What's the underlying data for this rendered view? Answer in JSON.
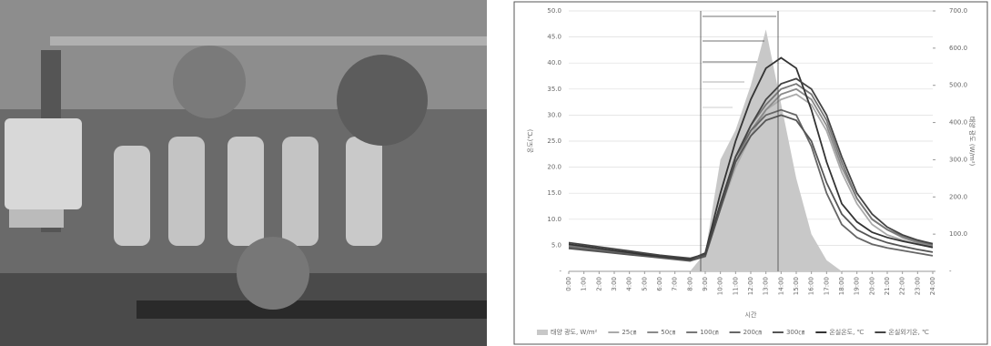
{
  "chart_data": {
    "type": "line",
    "y_label": "온도(℃)",
    "y2_label": "태양 광도 (W/m²)",
    "x_label": "시간",
    "x": [
      0,
      1,
      2,
      3,
      4,
      5,
      6,
      7,
      8,
      9,
      10,
      11,
      12,
      13,
      14,
      15,
      16,
      17,
      18,
      19,
      20,
      21,
      22,
      23,
      24
    ],
    "xlim": [
      0,
      24
    ],
    "xticks": [
      {
        "value": 0,
        "label": "0:00"
      },
      {
        "value": 1,
        "label": "1:00"
      },
      {
        "value": 2,
        "label": "2:00"
      },
      {
        "value": 3,
        "label": "3:00"
      },
      {
        "value": 4,
        "label": "4:00"
      },
      {
        "value": 5,
        "label": "5:00"
      },
      {
        "value": 6,
        "label": "6:00"
      },
      {
        "value": 7,
        "label": "7:00"
      },
      {
        "value": 8,
        "label": "8:00"
      },
      {
        "value": 9,
        "label": "9:00"
      },
      {
        "value": 10,
        "label": "10:00"
      },
      {
        "value": 11,
        "label": "11:00"
      },
      {
        "value": 12,
        "label": "12:00"
      },
      {
        "value": 13,
        "label": "13:00"
      },
      {
        "value": 14,
        "label": "14:00"
      },
      {
        "value": 15,
        "label": "15:00"
      },
      {
        "value": 16,
        "label": "16:00"
      },
      {
        "value": 17,
        "label": "17:00"
      },
      {
        "value": 18,
        "label": "18:00"
      },
      {
        "value": 19,
        "label": "19:00"
      },
      {
        "value": 20,
        "label": "20:00"
      },
      {
        "value": 21,
        "label": "21:00"
      },
      {
        "value": 22,
        "label": "22:00"
      },
      {
        "value": 23,
        "label": "23:00"
      },
      {
        "value": 24,
        "label": "24:00"
      }
    ],
    "ylim": [
      0,
      50
    ],
    "yticks": [
      {
        "value": 0,
        "label": "-"
      },
      {
        "value": 5,
        "label": "5.0"
      },
      {
        "value": 10,
        "label": "10.0"
      },
      {
        "value": 15,
        "label": "15.0"
      },
      {
        "value": 20,
        "label": "20.0"
      },
      {
        "value": 25,
        "label": "25.0"
      },
      {
        "value": 30,
        "label": "30.0"
      },
      {
        "value": 35,
        "label": "35.0"
      },
      {
        "value": 40,
        "label": "40.0"
      },
      {
        "value": 45,
        "label": "45.0"
      },
      {
        "value": 50,
        "label": "50.0"
      }
    ],
    "y2lim": [
      0,
      700
    ],
    "y2ticks": [
      {
        "value": 0,
        "label": "-"
      },
      {
        "value": 100,
        "label": "100.0"
      },
      {
        "value": 200,
        "label": "200.0"
      },
      {
        "value": 300,
        "label": "300.0"
      },
      {
        "value": 400,
        "label": "400.0"
      },
      {
        "value": 500,
        "label": "500.0"
      },
      {
        "value": 600,
        "label": "600.0"
      },
      {
        "value": 700,
        "label": "700.0"
      }
    ],
    "grid": true,
    "series": [
      {
        "name": "태양 광도, W/m²",
        "color": "#c8c8c8",
        "axis": "y2",
        "style": "area",
        "values": [
          0,
          0,
          0,
          0,
          0,
          0,
          0,
          0,
          0,
          50,
          300,
          380,
          500,
          650,
          450,
          250,
          100,
          30,
          0,
          0,
          0,
          0,
          0,
          0,
          0
        ]
      },
      {
        "name": "25㎝",
        "color": "#aaaaaa",
        "values": [
          4.5,
          4.2,
          3.9,
          3.6,
          3.3,
          3.0,
          2.7,
          2.4,
          2.1,
          2.8,
          12,
          20,
          26,
          31,
          33,
          34,
          32,
          27,
          19,
          13,
          9,
          7,
          6,
          5.2,
          4.6
        ]
      },
      {
        "name": "50㎝",
        "color": "#8a8a8a",
        "values": [
          4.8,
          4.4,
          4.1,
          3.8,
          3.4,
          3.1,
          2.8,
          2.5,
          2.2,
          3.0,
          12,
          21,
          27,
          31,
          34,
          35,
          33,
          28,
          20,
          14,
          10,
          8,
          6.5,
          5.5,
          4.9
        ]
      },
      {
        "name": "100㎝",
        "color": "#777777",
        "values": [
          5,
          4.6,
          4.3,
          3.9,
          3.6,
          3.2,
          2.9,
          2.6,
          2.3,
          3.2,
          13,
          22,
          28,
          32,
          35,
          36,
          34,
          29,
          21,
          14,
          10,
          8,
          6.8,
          5.8,
          5.1
        ]
      },
      {
        "name": "200㎝",
        "color": "#666666",
        "values": [
          4.6,
          4.3,
          4.0,
          3.7,
          3.4,
          3.1,
          2.8,
          2.5,
          2.2,
          3.0,
          13,
          22,
          27,
          30,
          31,
          30,
          24,
          15,
          9,
          6.5,
          5.2,
          4.5,
          4.0,
          3.5,
          3.0
        ]
      },
      {
        "name": "300㎝",
        "color": "#555555",
        "values": [
          4.4,
          4.1,
          3.8,
          3.5,
          3.2,
          2.9,
          2.6,
          2.3,
          2.0,
          2.9,
          12,
          21,
          26,
          29,
          30,
          29,
          25,
          17,
          11,
          8,
          6.5,
          5.5,
          4.8,
          4.2,
          3.7
        ]
      },
      {
        "name": "온실온도, ℃",
        "color": "#333333",
        "values": [
          5.2,
          4.8,
          4.4,
          4.0,
          3.6,
          3.2,
          2.9,
          2.6,
          2.3,
          3.5,
          15,
          25,
          33,
          39,
          41,
          39,
          31,
          21,
          13,
          9.5,
          7.5,
          6.5,
          5.8,
          5.2,
          4.6
        ]
      },
      {
        "name": "온실외기온, ℃",
        "color": "#444444",
        "values": [
          5.5,
          5.1,
          4.7,
          4.3,
          3.9,
          3.5,
          3.1,
          2.8,
          2.5,
          3.3,
          13,
          22,
          28,
          33,
          36,
          37,
          35,
          30,
          22,
          15,
          11,
          8.5,
          7,
          6,
          5.3
        ]
      }
    ]
  }
}
